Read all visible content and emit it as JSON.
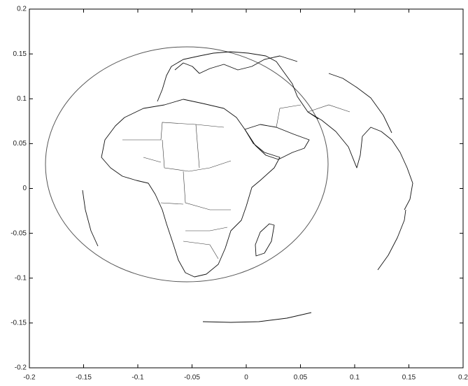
{
  "chart_data": {
    "type": "map",
    "xlim": [
      -0.2,
      0.2
    ],
    "xticks": [
      -0.2,
      -0.15,
      -0.1,
      -0.05,
      0,
      0.05,
      0.1,
      0.15,
      0.2
    ],
    "ylim": [
      -0.2,
      0.2
    ],
    "yticks": [
      -0.2,
      -0.15,
      -0.1,
      -0.05,
      0,
      0.05,
      0.1,
      0.15,
      0.2
    ]
  }
}
